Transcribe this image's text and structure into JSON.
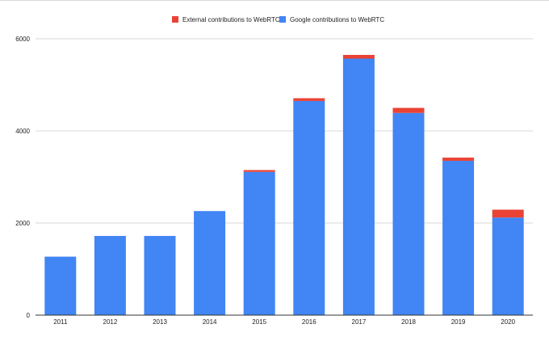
{
  "chart_data": {
    "type": "bar",
    "stacked": true,
    "title": "",
    "xlabel": "",
    "ylabel": "",
    "categories": [
      "2011",
      "2012",
      "2013",
      "2014",
      "2015",
      "2016",
      "2017",
      "2018",
      "2019",
      "2020"
    ],
    "series": [
      {
        "name": "Google contributions to WebRTC",
        "color": "#4285f4",
        "values": [
          1270,
          1720,
          1720,
          2260,
          3110,
          4650,
          5570,
          4390,
          3350,
          2120
        ]
      },
      {
        "name": "External contributions to WebRTC",
        "color": "#ea4335",
        "values": [
          0,
          0,
          0,
          0,
          40,
          60,
          80,
          110,
          70,
          170
        ]
      }
    ],
    "legend_order": [
      "External contributions to WebRTC",
      "Google contributions to WebRTC"
    ],
    "legend_position": "top",
    "ylim": [
      0,
      6000
    ],
    "yticks": [
      0,
      2000,
      4000,
      6000
    ],
    "grid": true
  }
}
